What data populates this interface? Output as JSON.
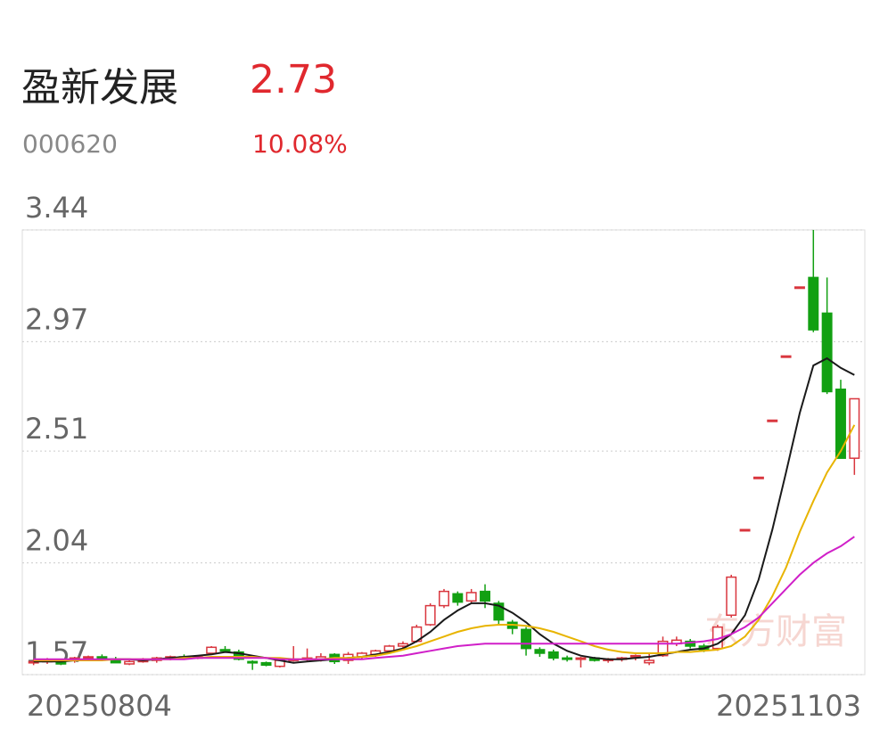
{
  "header": {
    "name": "盈新发展",
    "price": "2.73",
    "code": "000620",
    "change": "10.08%"
  },
  "chart_data": {
    "type": "candlestick",
    "watermark": "东方财富",
    "categories": [
      "20250804",
      null,
      null,
      null,
      null,
      null,
      null,
      null,
      null,
      null,
      null,
      null,
      null,
      null,
      null,
      null,
      null,
      null,
      null,
      null,
      null,
      null,
      null,
      null,
      null,
      null,
      null,
      null,
      null,
      null,
      null,
      null,
      null,
      null,
      null,
      null,
      null,
      null,
      null,
      null,
      null,
      null,
      null,
      null,
      null,
      null,
      null,
      null,
      null,
      null,
      null,
      null,
      null,
      null,
      null,
      null,
      null,
      null,
      null,
      null,
      "20251103"
    ],
    "open": [
      1.62,
      1.625,
      1.625,
      1.63,
      1.64,
      1.645,
      1.635,
      1.615,
      1.625,
      1.63,
      1.64,
      1.645,
      1.64,
      1.66,
      1.675,
      1.665,
      1.625,
      1.62,
      1.605,
      1.635,
      1.635,
      1.635,
      1.655,
      1.63,
      1.645,
      1.655,
      1.67,
      1.69,
      1.71,
      1.78,
      1.86,
      1.91,
      1.88,
      1.92,
      1.87,
      1.79,
      1.76,
      1.675,
      1.665,
      1.64,
      1.635,
      1.64,
      1.63,
      1.635,
      1.645,
      1.62,
      1.65,
      1.7,
      1.71,
      1.69,
      1.68,
      1.82,
      2.18,
      2.4,
      2.64,
      2.91,
      3.2,
      3.24,
      3.09,
      2.77,
      2.48
    ],
    "high": [
      1.635,
      1.64,
      1.635,
      1.645,
      1.65,
      1.655,
      1.645,
      1.63,
      1.64,
      1.645,
      1.65,
      1.655,
      1.65,
      1.69,
      1.69,
      1.675,
      1.63,
      1.625,
      1.64,
      1.69,
      1.68,
      1.66,
      1.66,
      1.665,
      1.665,
      1.675,
      1.695,
      1.71,
      1.78,
      1.87,
      1.93,
      1.92,
      1.93,
      1.95,
      1.88,
      1.8,
      1.77,
      1.685,
      1.675,
      1.65,
      1.645,
      1.645,
      1.64,
      1.645,
      1.655,
      1.66,
      1.73,
      1.73,
      1.72,
      1.7,
      1.78,
      1.99,
      2.18,
      2.4,
      2.64,
      2.91,
      3.2,
      3.44,
      3.24,
      2.81,
      2.73
    ],
    "low": [
      1.61,
      1.615,
      1.61,
      1.62,
      1.63,
      1.63,
      1.62,
      1.61,
      1.62,
      1.62,
      1.63,
      1.64,
      1.635,
      1.655,
      1.665,
      1.63,
      1.59,
      1.605,
      1.6,
      1.625,
      1.625,
      1.625,
      1.615,
      1.615,
      1.635,
      1.645,
      1.66,
      1.68,
      1.705,
      1.775,
      1.85,
      1.86,
      1.87,
      1.85,
      1.78,
      1.74,
      1.65,
      1.645,
      1.63,
      1.625,
      1.6,
      1.625,
      1.62,
      1.625,
      1.63,
      1.61,
      1.645,
      1.69,
      1.68,
      1.665,
      1.67,
      1.81,
      2.18,
      2.4,
      2.64,
      2.91,
      3.2,
      3.01,
      2.75,
      2.48,
      2.41
    ],
    "close": [
      1.625,
      1.63,
      1.615,
      1.64,
      1.645,
      1.64,
      1.62,
      1.625,
      1.63,
      1.64,
      1.645,
      1.64,
      1.645,
      1.685,
      1.67,
      1.635,
      1.62,
      1.61,
      1.63,
      1.635,
      1.64,
      1.645,
      1.625,
      1.655,
      1.66,
      1.67,
      1.69,
      1.7,
      1.77,
      1.86,
      1.92,
      1.875,
      1.915,
      1.88,
      1.8,
      1.765,
      1.68,
      1.66,
      1.64,
      1.635,
      1.64,
      1.63,
      1.635,
      1.64,
      1.65,
      1.63,
      1.71,
      1.715,
      1.69,
      1.675,
      1.77,
      1.98,
      2.18,
      2.4,
      2.64,
      2.91,
      3.2,
      3.02,
      2.76,
      2.48,
      2.73
    ],
    "up_color": "#d9363e",
    "down_color": "#12a012",
    "series": [
      {
        "color": "#1a1a1a",
        "values": [
          1.625,
          1.625,
          1.625,
          1.63,
          1.63,
          1.635,
          1.635,
          1.635,
          1.63,
          1.635,
          1.64,
          1.645,
          1.65,
          1.655,
          1.665,
          1.66,
          1.65,
          1.64,
          1.63,
          1.62,
          1.625,
          1.63,
          1.635,
          1.64,
          1.645,
          1.655,
          1.665,
          1.68,
          1.71,
          1.75,
          1.8,
          1.84,
          1.87,
          1.87,
          1.86,
          1.83,
          1.79,
          1.74,
          1.7,
          1.67,
          1.65,
          1.64,
          1.635,
          1.635,
          1.64,
          1.645,
          1.655,
          1.665,
          1.675,
          1.68,
          1.7,
          1.74,
          1.82,
          1.97,
          2.18,
          2.42,
          2.67,
          2.87,
          2.9,
          2.86,
          2.83
        ]
      },
      {
        "color": "#e8b400",
        "values": [
          1.63,
          1.63,
          1.63,
          1.63,
          1.63,
          1.63,
          1.635,
          1.635,
          1.635,
          1.635,
          1.635,
          1.64,
          1.64,
          1.645,
          1.645,
          1.645,
          1.645,
          1.64,
          1.64,
          1.635,
          1.635,
          1.635,
          1.64,
          1.64,
          1.645,
          1.65,
          1.66,
          1.675,
          1.69,
          1.71,
          1.73,
          1.75,
          1.765,
          1.775,
          1.78,
          1.78,
          1.775,
          1.765,
          1.75,
          1.73,
          1.71,
          1.69,
          1.675,
          1.665,
          1.66,
          1.66,
          1.66,
          1.665,
          1.665,
          1.67,
          1.675,
          1.69,
          1.73,
          1.8,
          1.9,
          2.02,
          2.17,
          2.3,
          2.42,
          2.51,
          2.62
        ]
      },
      {
        "color": "#d01fc8",
        "values": [
          1.635,
          1.635,
          1.635,
          1.635,
          1.635,
          1.635,
          1.635,
          1.635,
          1.635,
          1.635,
          1.635,
          1.635,
          1.64,
          1.64,
          1.64,
          1.64,
          1.64,
          1.64,
          1.635,
          1.635,
          1.635,
          1.635,
          1.635,
          1.635,
          1.635,
          1.64,
          1.645,
          1.65,
          1.66,
          1.67,
          1.68,
          1.69,
          1.695,
          1.7,
          1.7,
          1.7,
          1.7,
          1.7,
          1.7,
          1.7,
          1.7,
          1.7,
          1.7,
          1.7,
          1.7,
          1.7,
          1.7,
          1.7,
          1.705,
          1.71,
          1.72,
          1.74,
          1.77,
          1.81,
          1.87,
          1.93,
          1.99,
          2.04,
          2.08,
          2.11,
          2.15
        ]
      }
    ],
    "ylim": [
      1.57,
      3.44
    ],
    "yticks": [
      1.57,
      2.04,
      2.51,
      2.97,
      3.44
    ],
    "grid": true
  }
}
